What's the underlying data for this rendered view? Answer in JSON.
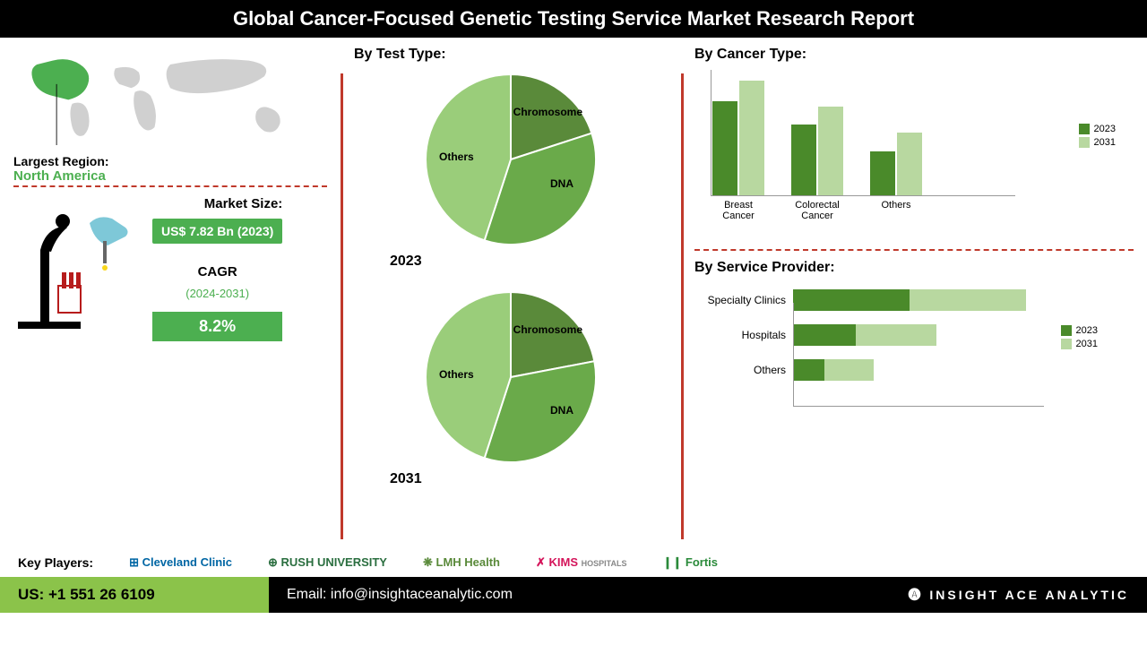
{
  "title": "Global Cancer-Focused Genetic Testing Service Market Research Report",
  "region": {
    "label": "Largest Region:",
    "value": "North America",
    "map_highlight_color": "#4caf50",
    "map_base_color": "#d0d0d0"
  },
  "market_size": {
    "label": "Market Size:",
    "value": "US$ 7.82 Bn (2023)"
  },
  "cagr": {
    "label": "CAGR",
    "years": "(2024-2031)",
    "value": "8.2%"
  },
  "test_type": {
    "title": "By Test Type:",
    "pie_2023": {
      "year": "2023",
      "slices": [
        {
          "label": "Chromosome",
          "value": 20,
          "color": "#5a8a3a"
        },
        {
          "label": "DNA",
          "value": 35,
          "color": "#6aaa4a"
        },
        {
          "label": "Others",
          "value": 45,
          "color": "#9acd7a"
        }
      ]
    },
    "pie_2031": {
      "year": "2031",
      "slices": [
        {
          "label": "Chromosome",
          "value": 22,
          "color": "#5a8a3a"
        },
        {
          "label": "DNA",
          "value": 33,
          "color": "#6aaa4a"
        },
        {
          "label": "Others",
          "value": 45,
          "color": "#9acd7a"
        }
      ]
    }
  },
  "cancer_type": {
    "title": "By  Cancer Type:",
    "categories": [
      "Breast Cancer",
      "Colorectal Cancer",
      "Others"
    ],
    "series_2023": {
      "label": "2023",
      "color": "#4a8a2a",
      "values": [
        90,
        68,
        42
      ]
    },
    "series_2031": {
      "label": "2031",
      "color": "#b8d8a0",
      "values": [
        110,
        85,
        60
      ]
    },
    "max": 120
  },
  "service_provider": {
    "title": "By Service Provider:",
    "categories": [
      "Specialty Clinics",
      "Hospitals",
      "Others"
    ],
    "series_2023": {
      "label": "2023",
      "color": "#4a8a2a",
      "values": [
        130,
        70,
        35
      ]
    },
    "series_2031": {
      "label": "2031",
      "color": "#b8d8a0",
      "values": [
        130,
        90,
        55
      ]
    },
    "max": 280
  },
  "players": {
    "label": "Key Players:",
    "list": [
      "Cleveland Clinic",
      "RUSH UNIVERSITY",
      "LMH Health",
      "KIMS",
      "Fortis"
    ]
  },
  "footer": {
    "phone": "US: +1 551 26 6109",
    "email": "Email: info@insightaceanalytic.com",
    "company": "INSIGHT ACE ANALYTIC"
  },
  "colors": {
    "green_primary": "#4caf50",
    "green_dark": "#4a8a2a",
    "green_light": "#b8d8a0"
  }
}
